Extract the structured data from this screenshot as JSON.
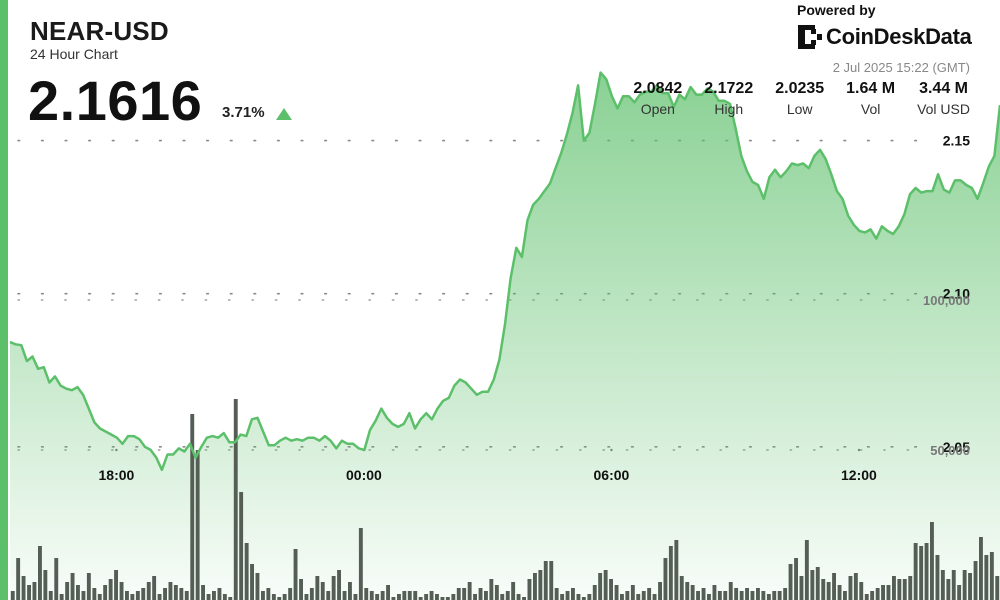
{
  "header": {
    "title": "NEAR-USD",
    "subtitle": "24 Hour Chart",
    "price": "2.1616",
    "change": "3.71%",
    "change_direction_icon": "up-triangle-icon"
  },
  "branding": {
    "powered_by": "Powered by",
    "name": "CoinDeskData",
    "logo_icon": "coindesk-logo-icon"
  },
  "timestamp": "2 Jul 2025 15:22 (GMT)",
  "stats": [
    {
      "value": "2.0842",
      "label": "Open"
    },
    {
      "value": "2.1722",
      "label": "High"
    },
    {
      "value": "2.0235",
      "label": "Low"
    },
    {
      "value": "1.64 M",
      "label": "Vol"
    },
    {
      "value": "3.44 M",
      "label": "Vol USD"
    }
  ],
  "colors": {
    "accent": "#5cbf6a",
    "line": "#5cbf6a",
    "volume_bars": "#555e55",
    "price_labels": "#111111",
    "volume_labels": "#777777"
  },
  "chart_data": {
    "type": "line",
    "x_tick_labels": [
      "18:00",
      "00:00",
      "06:00",
      "12:00"
    ],
    "x_tick_positions_hours": [
      2.58,
      8.58,
      14.58,
      20.58
    ],
    "y_tick_labels": [
      "2.15",
      "2.10",
      "2.05"
    ],
    "y_ticks": [
      2.15,
      2.1,
      2.05
    ],
    "ylim": [
      2.0,
      2.175
    ],
    "volume_tick_labels": [
      "100,000",
      "50,000"
    ],
    "volume_ticks": [
      100000,
      50000
    ],
    "volume_max": 125000,
    "grid": "dotted-horizontal",
    "price_series": {
      "name": "NEAR-USD",
      "values": [
        2.0842,
        2.0835,
        2.0832,
        2.078,
        2.0795,
        2.0755,
        2.076,
        2.071,
        2.073,
        2.07,
        2.069,
        2.0685,
        2.0695,
        2.067,
        2.0625,
        2.058,
        2.056,
        2.055,
        2.054,
        2.053,
        2.051,
        2.0535,
        2.0535,
        2.0525,
        2.05,
        2.049,
        2.0465,
        2.0425,
        2.0475,
        2.0475,
        2.0495,
        2.0485,
        2.051,
        2.0465,
        2.05,
        2.053,
        2.0535,
        2.053,
        2.0545,
        2.0515,
        2.0515,
        2.054,
        2.0535,
        2.059,
        2.0595,
        2.055,
        2.0505,
        2.0505,
        2.052,
        2.053,
        2.052,
        2.0525,
        2.052,
        2.053,
        2.053,
        2.052,
        2.0535,
        2.052,
        2.0495,
        2.052,
        2.051,
        2.051,
        2.0495,
        2.049,
        2.0555,
        2.0585,
        2.0625,
        2.0595,
        2.0575,
        2.0565,
        2.0575,
        2.061,
        2.056,
        2.059,
        2.061,
        2.059,
        2.0625,
        2.065,
        2.066,
        2.07,
        2.072,
        2.071,
        2.069,
        2.067,
        2.068,
        2.068,
        2.072,
        2.0785,
        2.09,
        2.105,
        2.115,
        2.112,
        2.124,
        2.129,
        2.131,
        2.1335,
        2.136,
        2.141,
        2.146,
        2.152,
        2.159,
        2.168,
        2.15,
        2.1525,
        2.162,
        2.1722,
        2.17,
        2.1645,
        2.1605,
        2.1645,
        2.1645,
        2.1625,
        2.165,
        2.166,
        2.166,
        2.168,
        2.1655,
        2.1655,
        2.161,
        2.165,
        2.1635,
        2.1675,
        2.165,
        2.165,
        2.167,
        2.166,
        2.163,
        2.163,
        2.162,
        2.154,
        2.145,
        2.14,
        2.1365,
        2.1355,
        2.131,
        2.138,
        2.1405,
        2.138,
        2.14,
        2.1425,
        2.142,
        2.1425,
        2.141,
        2.145,
        2.147,
        2.144,
        2.139,
        2.1335,
        2.131,
        2.1255,
        2.1225,
        2.1205,
        2.12,
        2.121,
        2.118,
        2.122,
        2.1205,
        2.1195,
        2.122,
        2.126,
        2.1325,
        2.1345,
        2.133,
        2.1335,
        2.1335,
        2.139,
        2.134,
        2.133,
        2.137,
        2.137,
        2.1355,
        2.1345,
        2.131,
        2.136,
        2.1415,
        2.145,
        2.1616
      ]
    },
    "volume_series": {
      "name": "Volume",
      "values": [
        3000,
        14000,
        8000,
        5000,
        6000,
        18000,
        10000,
        3000,
        14000,
        2000,
        6000,
        9000,
        5000,
        3000,
        9000,
        4000,
        2000,
        5000,
        7000,
        10000,
        6000,
        3000,
        2000,
        3000,
        4000,
        6000,
        8000,
        2000,
        4000,
        6000,
        5000,
        4000,
        3000,
        62000,
        50000,
        5000,
        2000,
        3000,
        4000,
        2000,
        1000,
        67000,
        36000,
        19000,
        12000,
        9000,
        3000,
        4000,
        2000,
        1000,
        2000,
        4000,
        17000,
        7000,
        2000,
        4000,
        8000,
        6000,
        3000,
        8000,
        10000,
        3000,
        6000,
        2000,
        24000,
        4000,
        3000,
        2000,
        3000,
        5000,
        1000,
        2000,
        3000,
        3000,
        3000,
        1000,
        2000,
        3000,
        2000,
        1000,
        1000,
        2000,
        4000,
        4000,
        6000,
        2000,
        4000,
        3000,
        7000,
        5000,
        2000,
        3000,
        6000,
        2000,
        1000,
        7000,
        9000,
        10000,
        13000,
        13000,
        4000,
        2000,
        3000,
        4000,
        2000,
        1000,
        2000,
        5000,
        9000,
        10000,
        7000,
        5000,
        2000,
        3000,
        5000,
        2000,
        3000,
        4000,
        2000,
        6000,
        14000,
        18000,
        20000,
        8000,
        6000,
        5000,
        3000,
        4000,
        2000,
        5000,
        3000,
        3000,
        6000,
        4000,
        3000,
        4000,
        3000,
        4000,
        3000,
        2000,
        3000,
        3000,
        4000,
        12000,
        14000,
        8000,
        20000,
        10000,
        11000,
        7000,
        6000,
        9000,
        5000,
        3000,
        8000,
        9000,
        6000,
        2000,
        3000,
        4000,
        5000,
        5000,
        8000,
        7000,
        7000,
        8000,
        19000,
        18000,
        19000,
        26000,
        15000,
        10000,
        7000,
        10000,
        5000,
        10000,
        9000,
        13000,
        21000,
        15000,
        16000,
        8000
      ]
    }
  }
}
